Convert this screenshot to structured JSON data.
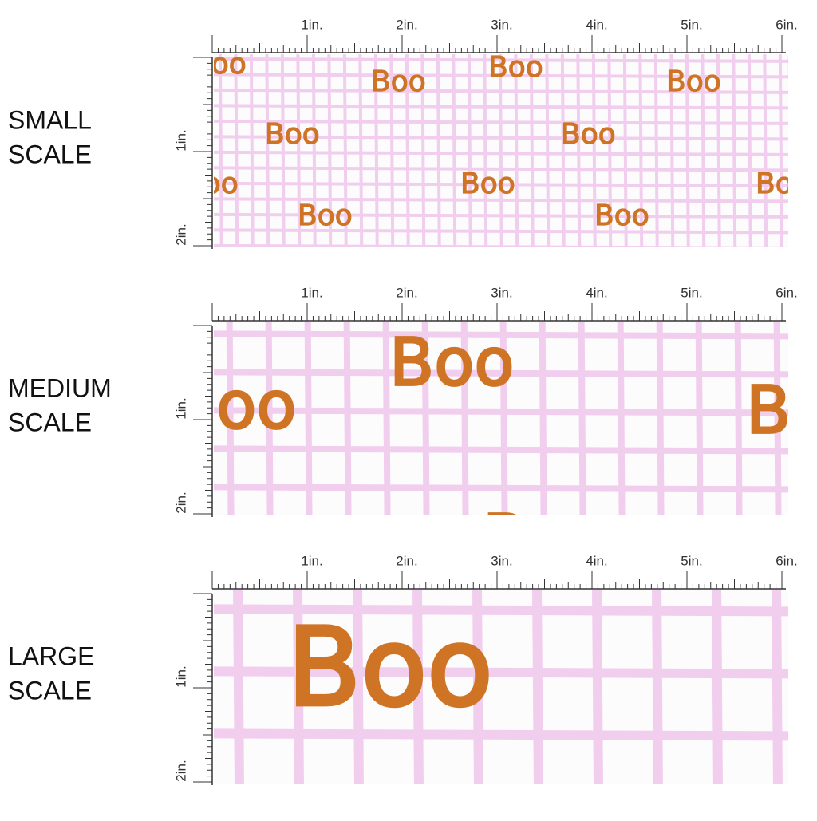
{
  "panels": [
    {
      "label": [
        "SMALL",
        "SCALE"
      ]
    },
    {
      "label": [
        "MEDIUM",
        "SCALE"
      ]
    },
    {
      "label": [
        "LARGE",
        "SCALE"
      ]
    }
  ],
  "pattern_text": "Boo",
  "ruler": {
    "x_labels": [
      "1in.",
      "2in.",
      "3in.",
      "4in.",
      "5in.",
      "6in."
    ],
    "y_labels": [
      "1in.",
      "2in."
    ]
  }
}
